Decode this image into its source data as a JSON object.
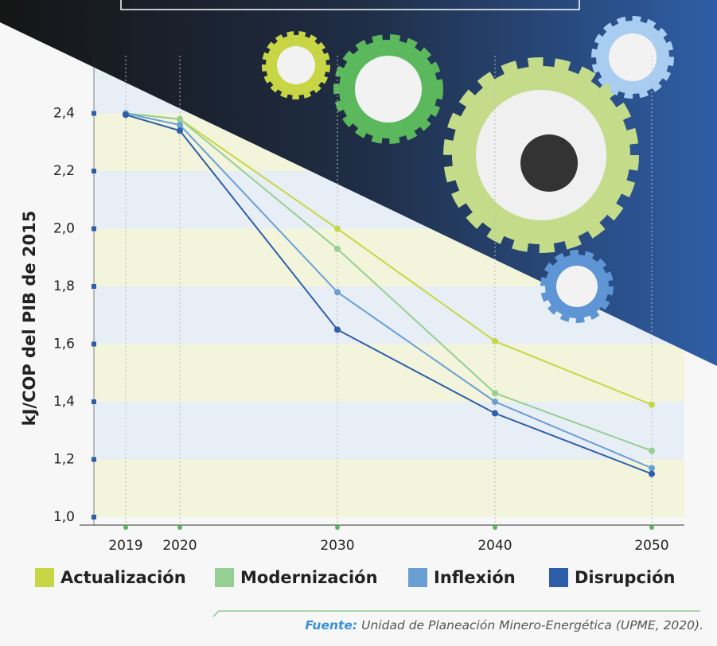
{
  "chart_data": {
    "type": "line",
    "y_axis_label": "kJ/COP del PIB de 2015",
    "categories": [
      "2019",
      "2020",
      "2030",
      "2040",
      "2050"
    ],
    "series": [
      {
        "name": "Actualización",
        "color": "#c8d645",
        "values": [
          2.4,
          2.38,
          2.0,
          1.61,
          1.39
        ]
      },
      {
        "name": "Modernización",
        "color": "#95cf94",
        "values": [
          2.4,
          2.38,
          1.93,
          1.43,
          1.23
        ]
      },
      {
        "name": "Inflexión",
        "color": "#6a9fd4",
        "values": [
          2.4,
          2.36,
          1.78,
          1.4,
          1.17
        ]
      },
      {
        "name": "Disrupción",
        "color": "#2e5ea8",
        "values": [
          2.395,
          2.34,
          1.65,
          1.36,
          1.15
        ]
      }
    ],
    "ylim": [
      1.0,
      2.6
    ],
    "yticks": [
      {
        "value": 1.0,
        "label": "1,0"
      },
      {
        "value": 1.2,
        "label": "1,2"
      },
      {
        "value": 1.4,
        "label": "1,4"
      },
      {
        "value": 1.6,
        "label": "1,6"
      },
      {
        "value": 1.8,
        "label": "1,8"
      },
      {
        "value": 2.0,
        "label": "2,0"
      },
      {
        "value": 2.2,
        "label": "2,2"
      },
      {
        "value": 2.4,
        "label": "2,4"
      }
    ],
    "source_label": "Fuente:",
    "source": "Unidad de Planeación Minero-Energética (UPME, 2020)."
  }
}
